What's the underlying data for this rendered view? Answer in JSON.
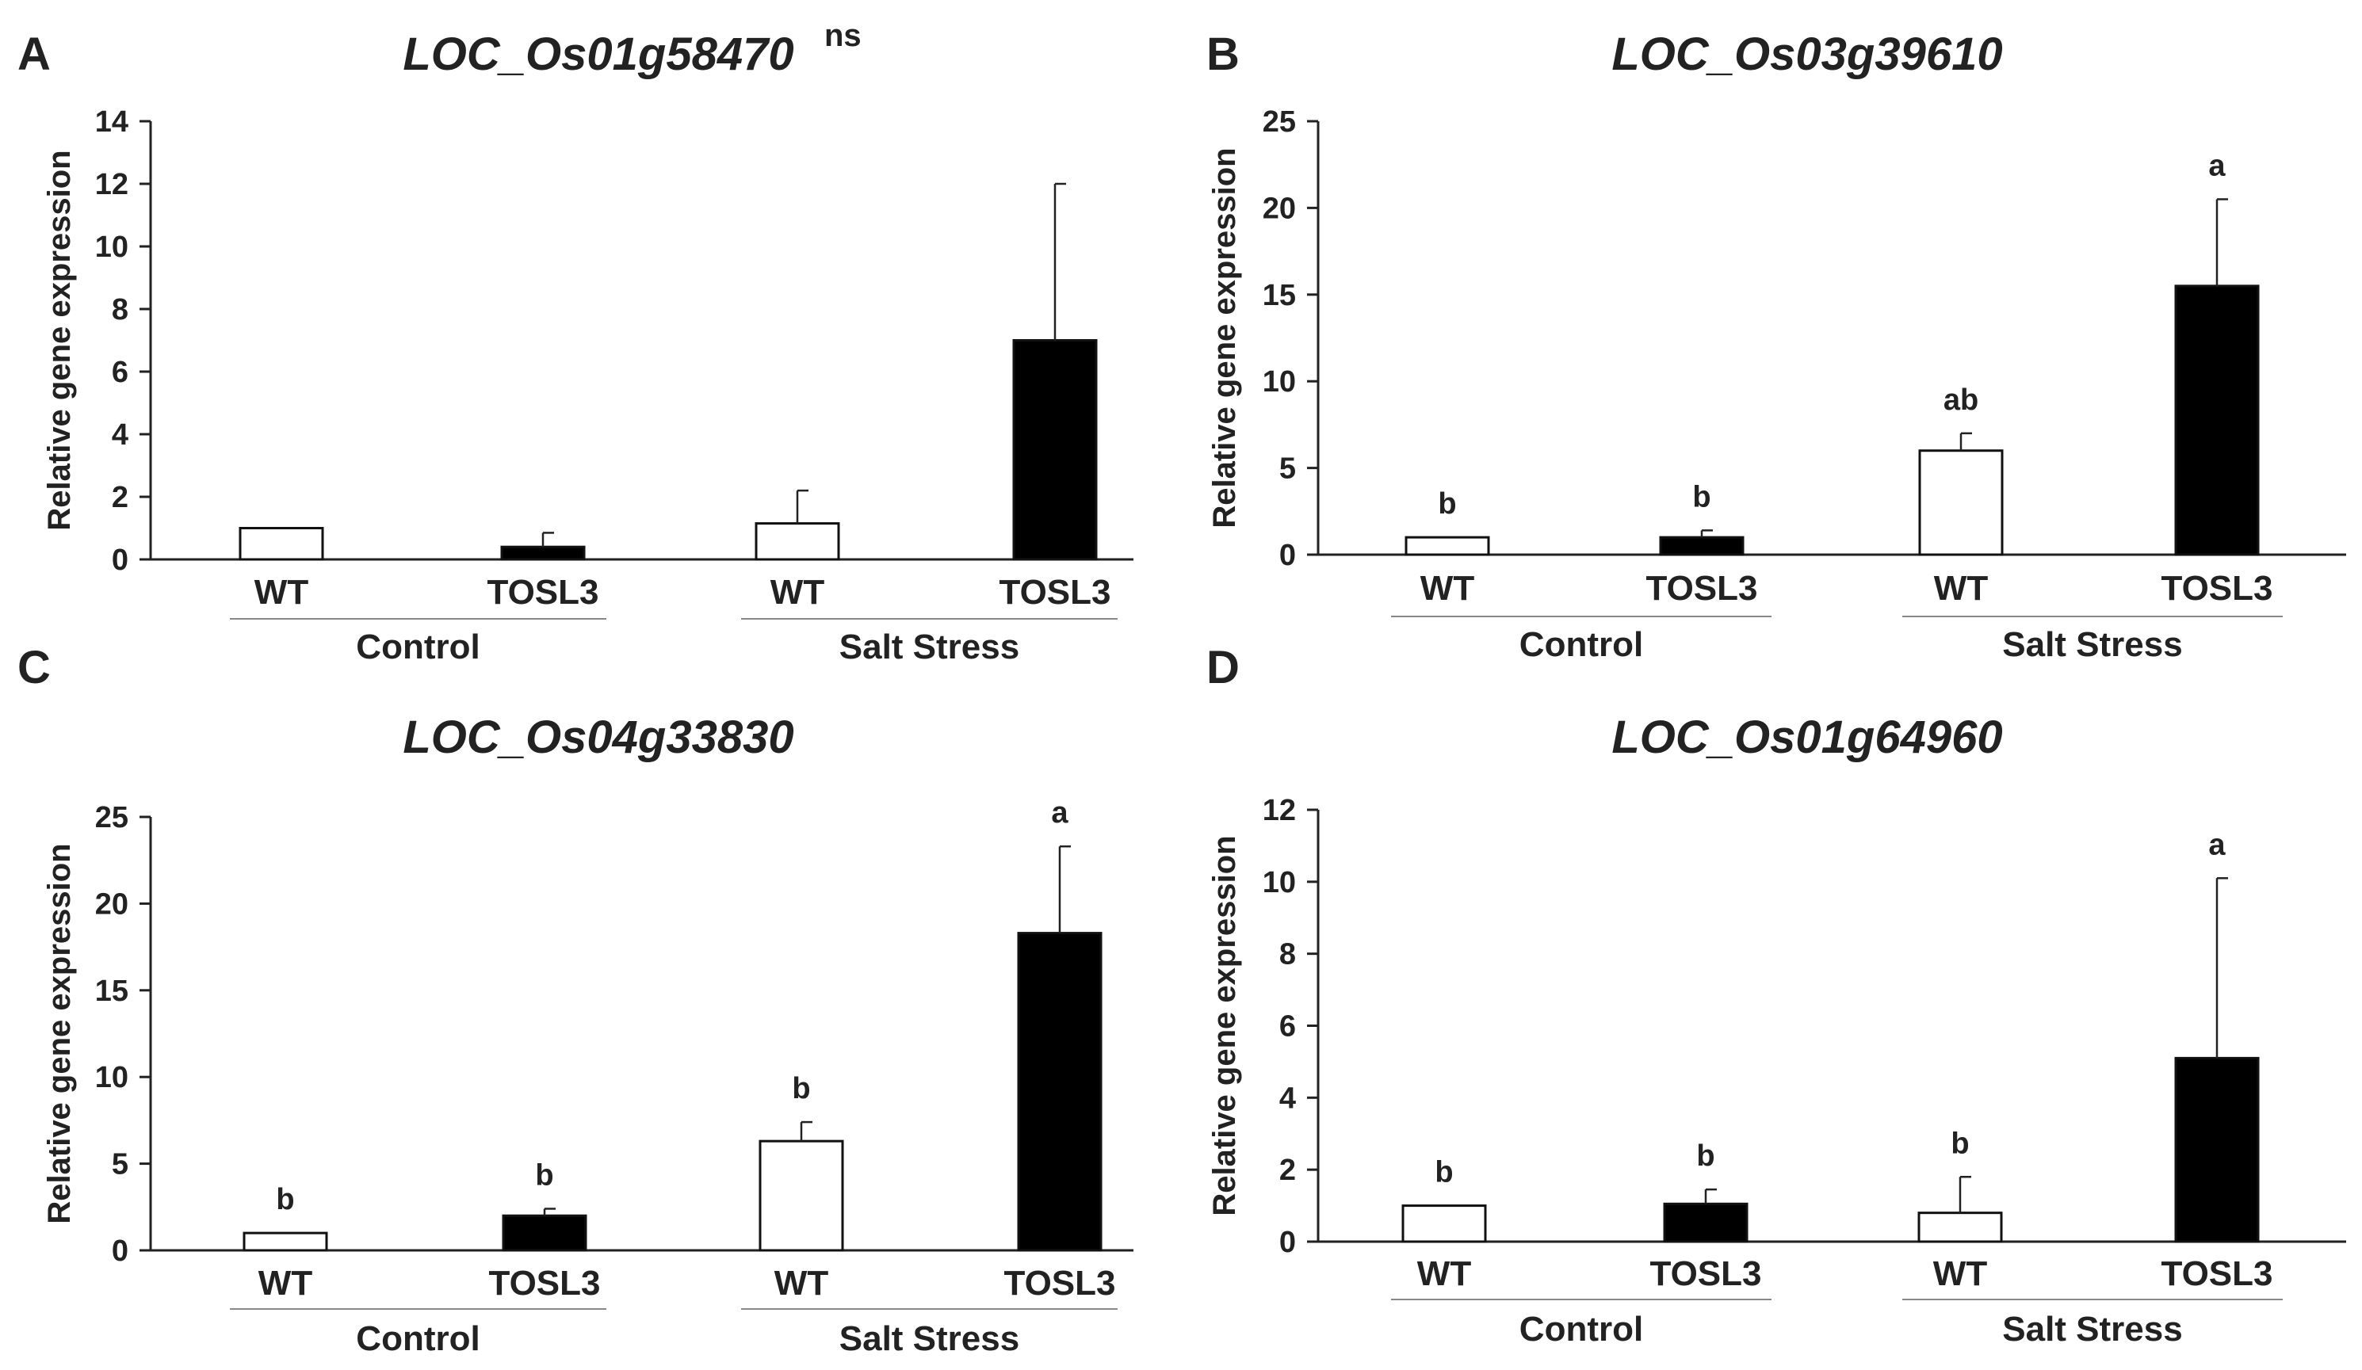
{
  "chart_data": [
    {
      "type": "bar",
      "panel": "A",
      "title": "LOC_Os01g58470",
      "title_superscript": "ns",
      "ylabel": "Relative gene expression",
      "ylim": [
        0,
        14
      ],
      "yticks": [
        0,
        2,
        4,
        6,
        8,
        10,
        12,
        14
      ],
      "categories": [
        "WT",
        "TOSL3",
        "WT",
        "TOSL3"
      ],
      "groups": [
        {
          "name": "Control"
        },
        {
          "name": "Salt Stress"
        }
      ],
      "values": [
        1.0,
        0.4,
        1.15,
        7.0
      ],
      "errors": [
        0.0,
        0.45,
        1.05,
        5.0
      ],
      "fills": [
        "#ffffff",
        "#000000",
        "#ffffff",
        "#000000"
      ],
      "significance": [
        "",
        "",
        "",
        ""
      ]
    },
    {
      "type": "bar",
      "panel": "B",
      "title": "LOC_Os03g39610",
      "title_superscript": "",
      "ylabel": "Relative gene expression",
      "ylim": [
        0,
        25
      ],
      "yticks": [
        0,
        5,
        10,
        15,
        20,
        25
      ],
      "categories": [
        "WT",
        "TOSL3",
        "WT",
        "TOSL3"
      ],
      "groups": [
        {
          "name": "Control"
        },
        {
          "name": "Salt Stress"
        }
      ],
      "values": [
        1.0,
        1.0,
        6.0,
        15.5
      ],
      "errors": [
        0.0,
        0.4,
        1.0,
        5.0
      ],
      "fills": [
        "#ffffff",
        "#000000",
        "#ffffff",
        "#000000"
      ],
      "significance": [
        "b",
        "b",
        "ab",
        "a"
      ]
    },
    {
      "type": "bar",
      "panel": "C",
      "title": "LOC_Os04g33830",
      "title_superscript": "",
      "ylabel": "Relative gene expression",
      "ylim": [
        0,
        25
      ],
      "yticks": [
        0,
        5,
        10,
        15,
        20,
        25
      ],
      "categories": [
        "WT",
        "TOSL3",
        "WT",
        "TOSL3"
      ],
      "groups": [
        {
          "name": "Control"
        },
        {
          "name": "Salt Stress"
        }
      ],
      "values": [
        1.0,
        2.0,
        6.3,
        18.3
      ],
      "errors": [
        0.0,
        0.4,
        1.1,
        5.0
      ],
      "fills": [
        "#ffffff",
        "#000000",
        "#ffffff",
        "#000000"
      ],
      "significance": [
        "b",
        "b",
        "b",
        "a"
      ]
    },
    {
      "type": "bar",
      "panel": "D",
      "title": "LOC_Os01g64960",
      "title_superscript": "",
      "ylabel": "Relative gene expression",
      "ylim": [
        0,
        12
      ],
      "yticks": [
        0,
        2,
        4,
        6,
        8,
        10,
        12
      ],
      "categories": [
        "WT",
        "TOSL3",
        "WT",
        "TOSL3"
      ],
      "groups": [
        {
          "name": "Control"
        },
        {
          "name": "Salt Stress"
        }
      ],
      "values": [
        1.0,
        1.05,
        0.8,
        5.1
      ],
      "errors": [
        0.0,
        0.4,
        1.0,
        5.0
      ],
      "fills": [
        "#ffffff",
        "#000000",
        "#ffffff",
        "#000000"
      ],
      "significance": [
        "b",
        "b",
        "b",
        "a"
      ]
    }
  ]
}
